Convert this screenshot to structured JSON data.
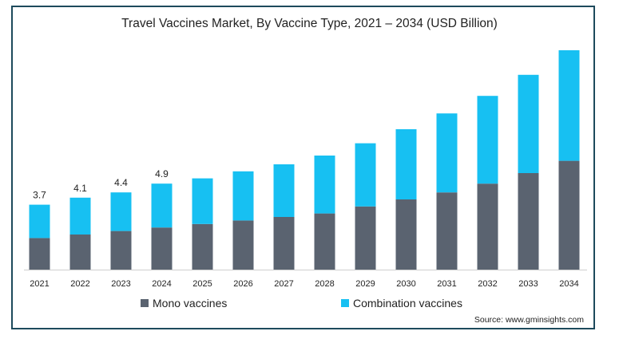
{
  "chart_data": {
    "type": "bar",
    "stacked": true,
    "title": "Travel Vaccines Market, By Vaccine Type, 2021 – 2034 (USD Billion)",
    "xlabel": "",
    "ylabel": "",
    "categories": [
      "2021",
      "2022",
      "2023",
      "2024",
      "2025",
      "2026",
      "2027",
      "2028",
      "2029",
      "2030",
      "2031",
      "2032",
      "2033",
      "2034"
    ],
    "series": [
      {
        "name": "Mono vaccines",
        "color": "#5a6370",
        "values": [
          1.8,
          2.0,
          2.2,
          2.4,
          2.6,
          2.8,
          3.0,
          3.2,
          3.6,
          4.0,
          4.4,
          4.9,
          5.5,
          6.2
        ]
      },
      {
        "name": "Combination vaccines",
        "color": "#17c0f2",
        "values": [
          1.9,
          2.1,
          2.2,
          2.5,
          2.6,
          2.8,
          3.0,
          3.3,
          3.6,
          4.0,
          4.5,
          5.0,
          5.6,
          6.3
        ]
      }
    ],
    "data_labels": [
      "3.7",
      "4.1",
      "4.4",
      "4.9",
      "",
      "",
      "",
      "",
      "",
      "",
      "",
      "",
      "",
      ""
    ],
    "ylim": [
      0,
      12.5
    ],
    "grid": false,
    "legend_position": "bottom"
  },
  "source": "Source: www.gminsights.com"
}
